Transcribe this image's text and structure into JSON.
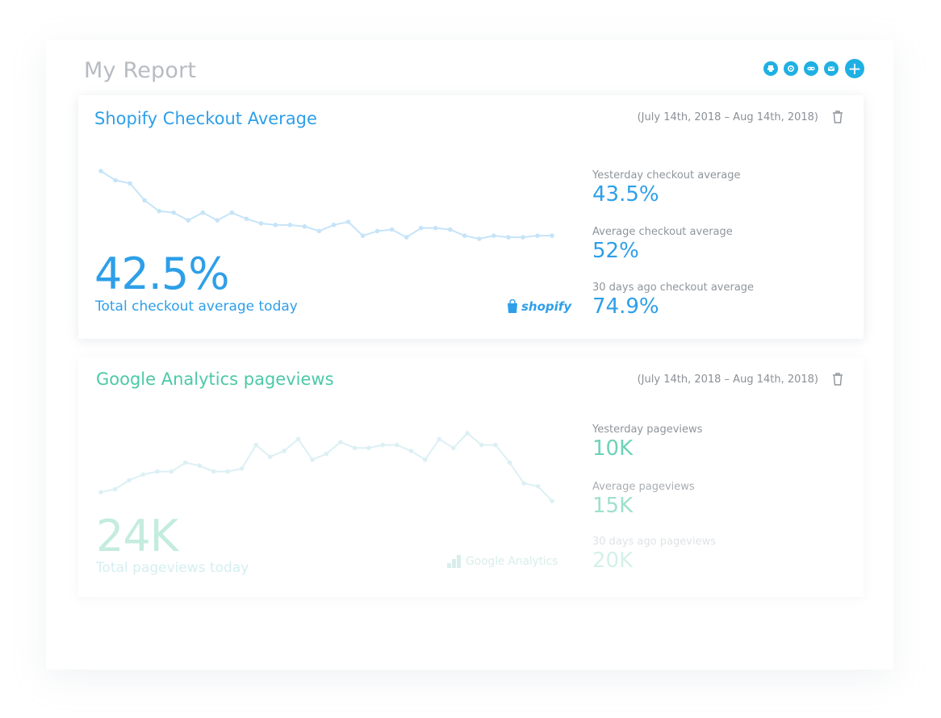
{
  "page": {
    "title": "My Report"
  },
  "toolbar": {
    "buttons": [
      "print-icon",
      "settings-icon",
      "link-icon",
      "email-icon"
    ],
    "add_label": "+"
  },
  "cards": [
    {
      "title": "Shopify Checkout Average",
      "date_range": "(July 14th, 2018 – Aug 14th, 2018)",
      "big_value": "42.5%",
      "big_label": "Total checkout average today",
      "logo_text": "shopify",
      "stats": [
        {
          "label": "Yesterday checkout average",
          "value": "43.5%"
        },
        {
          "label": "Average checkout average",
          "value": "52%"
        },
        {
          "label": "30 days ago checkout average",
          "value": "74.9%"
        }
      ],
      "series": [
        90,
        84,
        82,
        71,
        64,
        63,
        58,
        63,
        58,
        63,
        59,
        56,
        55,
        55,
        54,
        51,
        55,
        57,
        48,
        51,
        52,
        47,
        53,
        53,
        52,
        48,
        46,
        48,
        47,
        47,
        48,
        48
      ],
      "color": "#2e9fe8"
    },
    {
      "title": "Google Analytics pageviews",
      "date_range": "(July 14th, 2018 – Aug 14th, 2018)",
      "big_value": "24K",
      "big_label": "Total pageviews today",
      "logo_text": "Google Analytics",
      "stats": [
        {
          "label": "Yesterday pageviews",
          "value": "10K"
        },
        {
          "label": "Average pageviews",
          "value": "15K"
        },
        {
          "label": "30 days ago pageviews",
          "value": "20K"
        }
      ],
      "series": [
        40,
        41,
        44,
        46,
        47,
        47,
        50,
        49,
        47,
        47,
        48,
        56,
        52,
        54,
        58,
        51,
        53,
        57,
        55,
        55,
        56,
        56,
        54,
        51,
        58,
        55,
        60,
        56,
        56,
        50,
        43,
        42,
        37
      ],
      "color": "#d8eef2"
    }
  ]
}
